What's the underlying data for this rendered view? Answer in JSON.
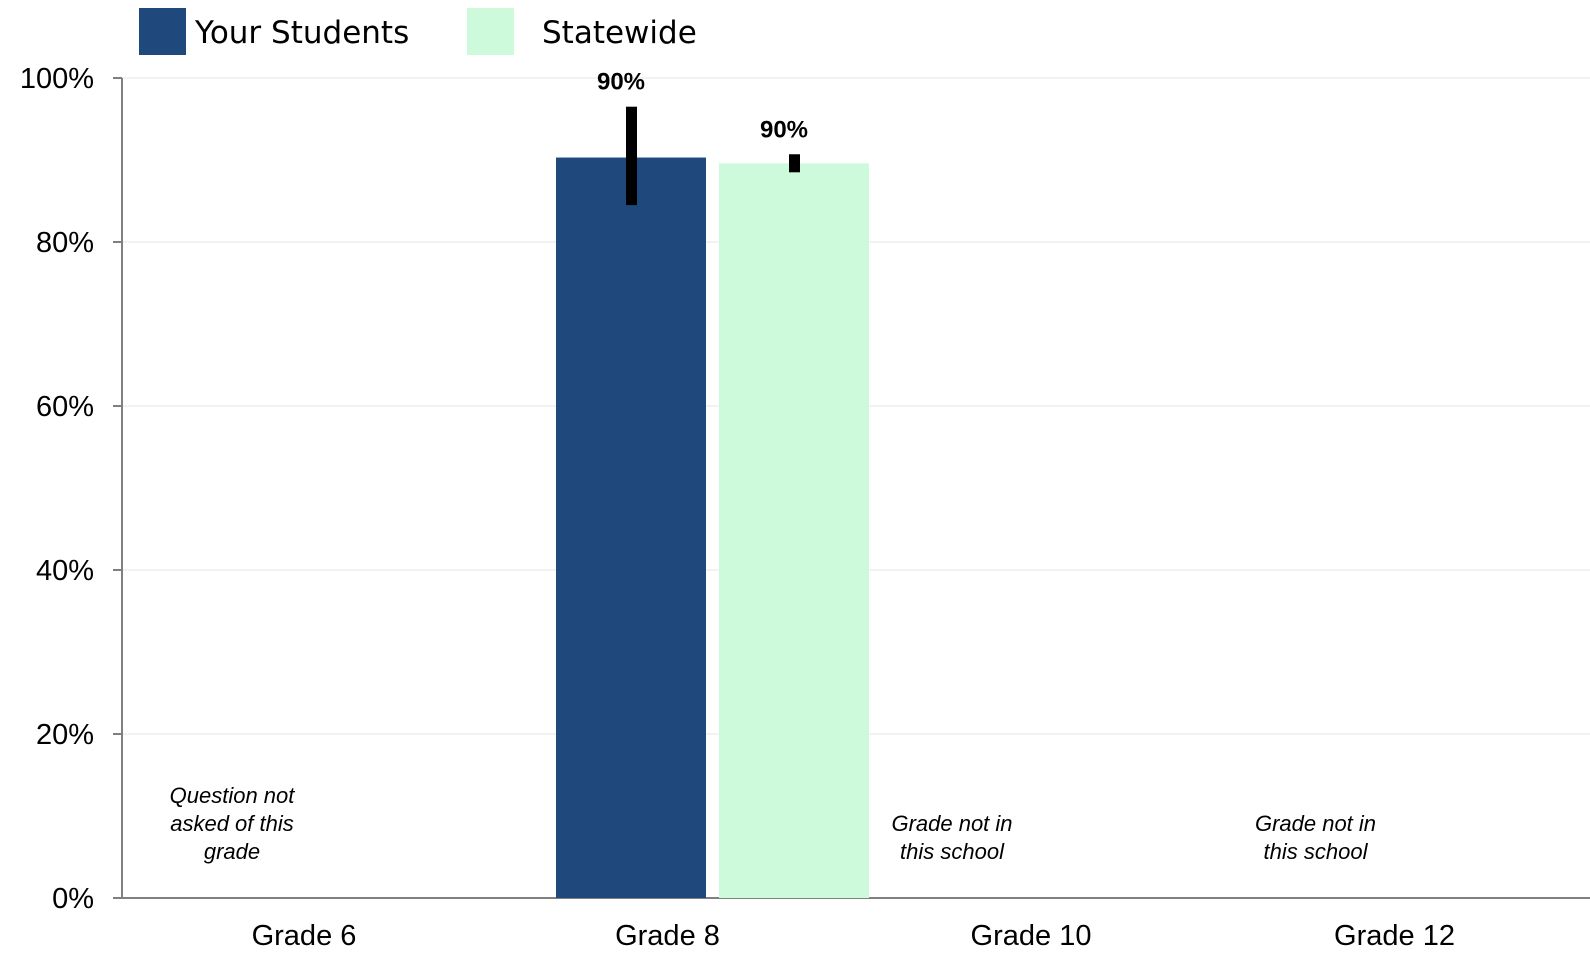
{
  "chart_data": {
    "type": "bar",
    "categories": [
      "Grade 6",
      "Grade 8",
      "Grade 10",
      "Grade 12"
    ],
    "series": [
      {
        "name": "Your Students",
        "color": "#1f497d",
        "values": [
          null,
          90.3,
          null,
          null
        ],
        "error_low": [
          null,
          84.5,
          null,
          null
        ],
        "error_high": [
          null,
          96.5,
          null,
          null
        ],
        "labels": [
          "",
          "90%",
          "",
          ""
        ]
      },
      {
        "name": "Statewide",
        "color": "#ccfadb",
        "values": [
          null,
          89.6,
          null,
          null
        ],
        "error_low": [
          null,
          88.5,
          null,
          null
        ],
        "error_high": [
          null,
          90.7,
          null,
          null
        ],
        "labels": [
          "",
          "90%",
          "",
          ""
        ]
      }
    ],
    "notes": [
      [
        "Question not",
        "asked of this",
        "grade"
      ],
      null,
      [
        "Grade not in",
        "this school"
      ],
      [
        "Grade not in",
        "this school"
      ]
    ],
    "ylim": [
      0,
      100
    ],
    "yticks": [
      "0%",
      "20%",
      "40%",
      "60%",
      "80%",
      "100%"
    ],
    "xlabel": "",
    "ylabel": "",
    "title": "",
    "grid": true,
    "legend": "top-left",
    "axis_color": "#808080",
    "grid_color": "#eeeeee",
    "error_bar_color": "#000000"
  }
}
